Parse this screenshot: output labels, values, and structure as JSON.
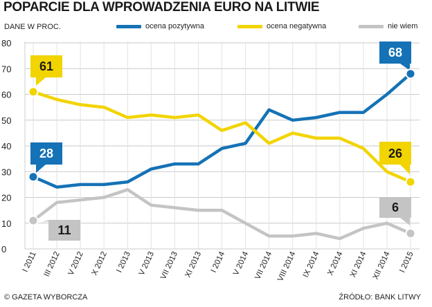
{
  "title": "POPARCIE DLA WPROWADZENIA EURO NA LITWIE",
  "subtitle": "DANE W PROC.",
  "footer_left": "© GAZETA WYBORCZA",
  "footer_right": "ŹRÓDŁO: BANK LITWY",
  "colors": {
    "pozytywna": "#1572b6",
    "negatywna": "#f2d400",
    "nie_wiem": "#c4c4c4"
  },
  "chart_data": {
    "type": "line",
    "ylim": [
      0,
      80
    ],
    "yticks": [
      0,
      10,
      20,
      30,
      40,
      50,
      60,
      70,
      80
    ],
    "x_labels": [
      "I 2011",
      "III 2012",
      "V 2012",
      "X 2012",
      "I 2013",
      "V 2013",
      "VII 2013",
      "XI 2013",
      "I 2014",
      "V 2014",
      "VII 2014",
      "VIII 2014",
      "IX 2014",
      "X 2014",
      "XI 2014",
      "XII 2014",
      "I 2015"
    ],
    "legend_position": "top",
    "series": [
      {
        "key": "pozytywna",
        "name": "ocena pozytywna",
        "color": "#1572b6",
        "values": [
          28,
          24,
          25,
          25,
          26,
          31,
          33,
          33,
          39,
          41,
          54,
          50,
          51,
          53,
          53,
          60,
          68
        ],
        "callouts": [
          {
            "index": 0,
            "label": "28"
          },
          {
            "index": 16,
            "label": "68"
          }
        ]
      },
      {
        "key": "negatywna",
        "name": "ocena negatywna",
        "color": "#f2d400",
        "values": [
          61,
          58,
          56,
          55,
          51,
          52,
          51,
          52,
          46,
          49,
          41,
          45,
          43,
          43,
          39,
          30,
          26
        ],
        "callouts": [
          {
            "index": 0,
            "label": "61"
          },
          {
            "index": 16,
            "label": "26"
          }
        ]
      },
      {
        "key": "nie_wiem",
        "name": "nie wiem",
        "color": "#c4c4c4",
        "values": [
          11,
          18,
          19,
          20,
          23,
          17,
          16,
          15,
          15,
          10,
          5,
          5,
          6,
          4,
          8,
          10,
          6
        ],
        "callouts": [
          {
            "index": 0,
            "label": "11"
          },
          {
            "index": 16,
            "label": "6"
          }
        ]
      }
    ]
  }
}
